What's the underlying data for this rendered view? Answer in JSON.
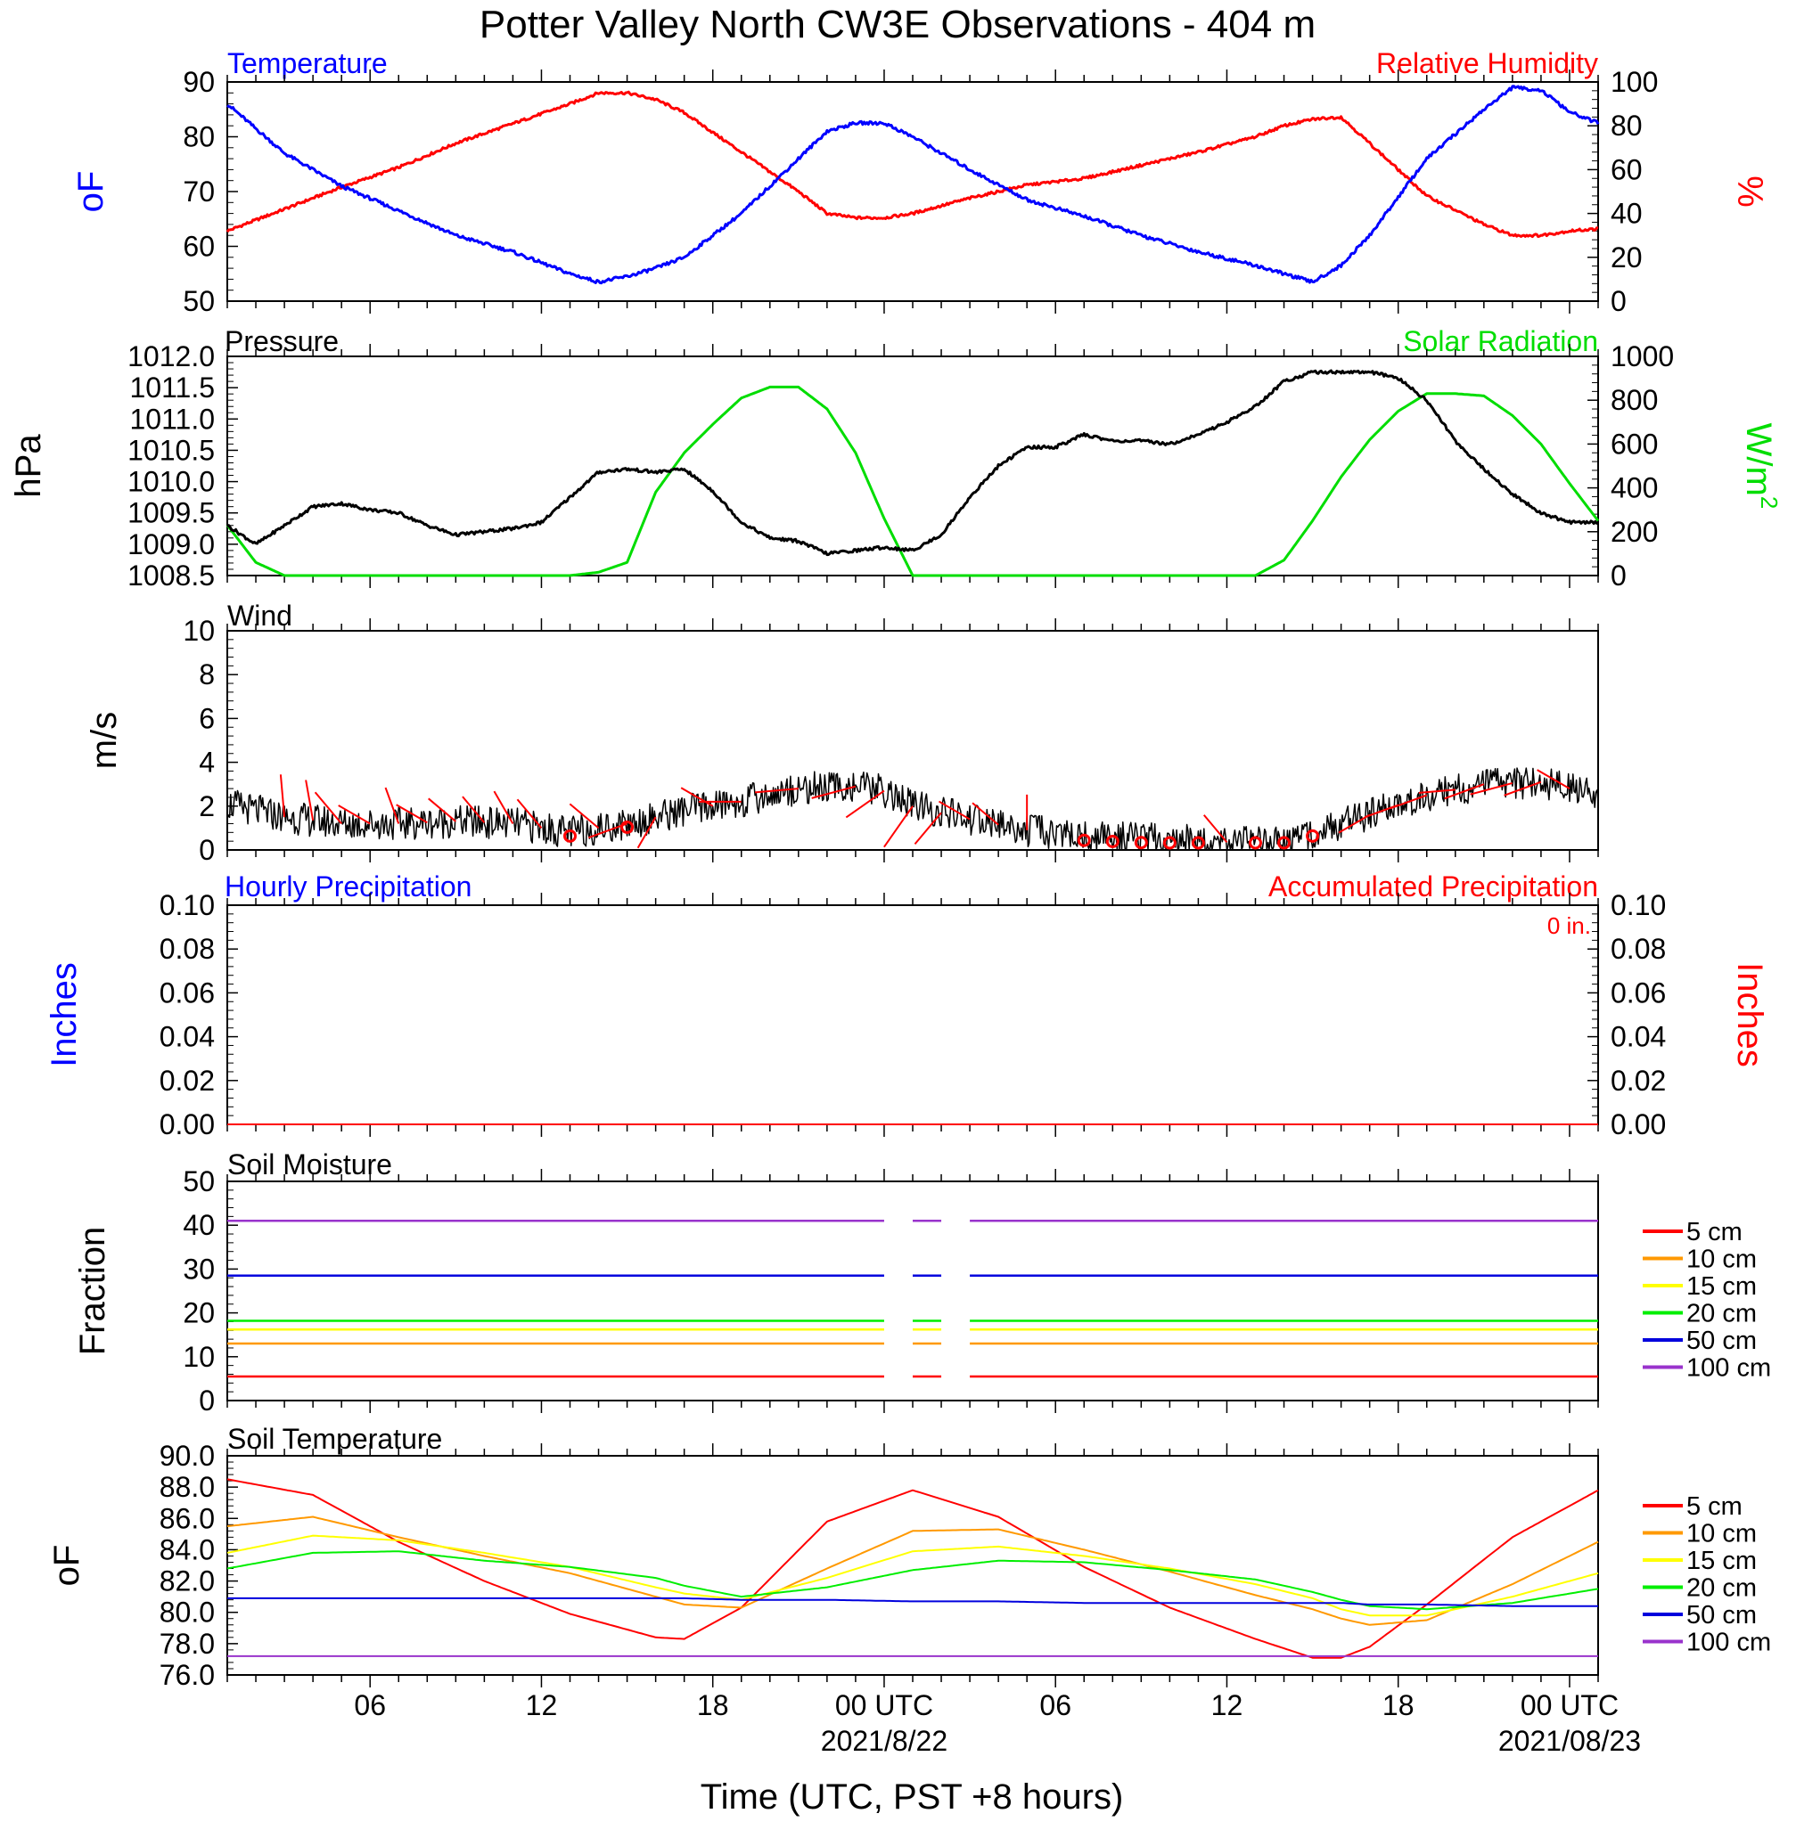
{
  "title": "Potter Valley North CW3E Observations - 404 m",
  "xaxis": {
    "title": "Time (UTC, PST +8 hours)",
    "hours_range": [
      0,
      48
    ],
    "tick_labels": [
      {
        "hour": 5,
        "label": "06",
        "sub": ""
      },
      {
        "hour": 11,
        "label": "12",
        "sub": ""
      },
      {
        "hour": 17,
        "label": "18",
        "sub": ""
      },
      {
        "hour": 23,
        "label": "00 UTC",
        "sub": "2021/8/22"
      },
      {
        "hour": 29,
        "label": "06",
        "sub": ""
      },
      {
        "hour": 35,
        "label": "12",
        "sub": ""
      },
      {
        "hour": 41,
        "label": "18",
        "sub": ""
      },
      {
        "hour": 47,
        "label": "00 UTC",
        "sub": "2021/08/23"
      }
    ]
  },
  "colors": {
    "temperature": "#0000ff",
    "humidity": "#ff0000",
    "pressure": "#000000",
    "solar": "#00dd00",
    "wind_speed": "#000000",
    "wind_barb": "#ff0000",
    "precip_hourly": "#0000ff",
    "precip_accum": "#ff0000"
  },
  "legend": {
    "depths": [
      "5 cm",
      "10 cm",
      "15 cm",
      "20 cm",
      "50 cm",
      "100 cm"
    ],
    "colors": [
      "#ff0000",
      "#ff9900",
      "#ffff00",
      "#00ee00",
      "#0000dd",
      "#9933cc"
    ]
  },
  "panels": {
    "temp_rh": {
      "left_label": "Temperature",
      "right_label": "Relative Humidity",
      "left_unit": "oF",
      "right_unit": "%",
      "left_ticks": [
        "90",
        "80",
        "70",
        "60",
        "50"
      ],
      "right_ticks": [
        "100",
        "80",
        "60",
        "40",
        "20",
        "0"
      ]
    },
    "pressure_solar": {
      "left_label": "Pressure",
      "right_label": "Solar Radiation",
      "left_unit": "hPa",
      "right_unit": "W/m2",
      "left_ticks": [
        "1012.0",
        "1011.5",
        "1011.0",
        "1010.5",
        "1010.0",
        "1009.5",
        "1009.0",
        "1008.5"
      ],
      "right_ticks": [
        "1000",
        "800",
        "600",
        "400",
        "200",
        "0"
      ]
    },
    "wind": {
      "left_label": "Wind",
      "left_unit": "m/s",
      "left_ticks": [
        "10",
        "8",
        "6",
        "4",
        "2",
        "0"
      ]
    },
    "precip": {
      "left_label": "Hourly Precipitation",
      "right_label": "Accumulated Precipitation",
      "accum_text": "0 in.",
      "left_unit": "Inches",
      "right_unit": "Inches",
      "left_ticks": [
        "0.10",
        "0.08",
        "0.06",
        "0.04",
        "0.02",
        "0.00"
      ],
      "right_ticks": [
        "0.10",
        "0.08",
        "0.06",
        "0.04",
        "0.02",
        "0.00"
      ]
    },
    "soil_moisture": {
      "left_label": "Soil Moisture",
      "left_unit": "Fraction",
      "left_ticks": [
        "50",
        "40",
        "30",
        "20",
        "10",
        "0"
      ]
    },
    "soil_temp": {
      "left_label": "Soil Temperature",
      "left_unit": "oF",
      "left_ticks": [
        "90.0",
        "88.0",
        "86.0",
        "84.0",
        "82.0",
        "80.0",
        "78.0",
        "76.0"
      ]
    }
  },
  "chart_data": [
    {
      "type": "line",
      "title": "Temperature / Relative Humidity",
      "ylim_left": [
        50,
        90
      ],
      "ylim_right": [
        0,
        100
      ],
      "x_hours": [
        0,
        2,
        4,
        6,
        8,
        10,
        12,
        13,
        14,
        15,
        16,
        18,
        20,
        21,
        22,
        23,
        24,
        26,
        28,
        30,
        32,
        34,
        36,
        37,
        38,
        39,
        40,
        42,
        44,
        45,
        46,
        47,
        48
      ],
      "series": [
        {
          "name": "Temperature",
          "axis": "left",
          "values": [
            86,
            77,
            71,
            66.5,
            62,
            59,
            55,
            53.5,
            54.5,
            56,
            58,
            66,
            76,
            81,
            82.5,
            82.5,
            80,
            74,
            68.5,
            65.5,
            62,
            59,
            56.5,
            55,
            53.5,
            56.5,
            62,
            76,
            85,
            89,
            88.5,
            84.5,
            82.5
          ]
        },
        {
          "name": "Relative Humidity",
          "axis": "right",
          "values": [
            32,
            42,
            52,
            61,
            72,
            81,
            90,
            95,
            95,
            92,
            86,
            68,
            50,
            40,
            38,
            38,
            40,
            47,
            53,
            56,
            62,
            68,
            75,
            80,
            83,
            84,
            72,
            48,
            35,
            30,
            30,
            32,
            33
          ]
        }
      ]
    },
    {
      "type": "line",
      "title": "Pressure / Solar Radiation",
      "ylim_left": [
        1008.5,
        1012.0
      ],
      "ylim_right": [
        0,
        1000
      ],
      "x_hours": [
        0,
        1,
        2,
        3,
        4,
        5,
        6,
        7,
        8,
        9,
        10,
        11,
        12,
        13,
        14,
        15,
        16,
        17,
        18,
        19,
        20,
        21,
        22,
        23,
        24,
        25,
        26,
        27,
        28,
        29,
        30,
        31,
        32,
        33,
        34,
        35,
        36,
        37,
        38,
        39,
        40,
        41,
        42,
        43,
        44,
        45,
        46,
        47,
        48
      ],
      "series": [
        {
          "name": "Pressure",
          "axis": "left",
          "values": [
            1009.3,
            1009.0,
            1009.3,
            1009.6,
            1009.65,
            1009.55,
            1009.5,
            1009.3,
            1009.15,
            1009.2,
            1009.25,
            1009.35,
            1009.75,
            1010.15,
            1010.2,
            1010.15,
            1010.2,
            1009.85,
            1009.35,
            1009.1,
            1009.05,
            1008.85,
            1008.9,
            1008.95,
            1008.9,
            1009.15,
            1009.75,
            1010.25,
            1010.55,
            1010.55,
            1010.75,
            1010.65,
            1010.65,
            1010.6,
            1010.75,
            1010.95,
            1011.2,
            1011.6,
            1011.75,
            1011.75,
            1011.75,
            1011.65,
            1011.3,
            1010.65,
            1010.2,
            1009.8,
            1009.5,
            1009.35,
            1009.35
          ]
        },
        {
          "name": "Solar Radiation",
          "axis": "right",
          "values": [
            230,
            60,
            0,
            0,
            0,
            0,
            0,
            0,
            0,
            0,
            0,
            0,
            0,
            15,
            60,
            380,
            560,
            690,
            810,
            860,
            860,
            760,
            560,
            260,
            0,
            0,
            0,
            0,
            0,
            0,
            0,
            0,
            0,
            0,
            0,
            0,
            0,
            70,
            250,
            450,
            620,
            750,
            830,
            830,
            820,
            730,
            600,
            420,
            250
          ]
        }
      ]
    },
    {
      "type": "line",
      "title": "Wind",
      "ylim": [
        0,
        10
      ],
      "x_hours": [
        0,
        2,
        4,
        6,
        8,
        10,
        12,
        13,
        14,
        16,
        18,
        20,
        22,
        23,
        24,
        26,
        28,
        30,
        32,
        34,
        36,
        37,
        38,
        40,
        42,
        44,
        46,
        48
      ],
      "series": [
        {
          "name": "Wind speed",
          "values": [
            2.1,
            1.5,
            1.2,
            1.2,
            1.3,
            1.2,
            0.8,
            1.0,
            1.2,
            1.8,
            2.2,
            2.8,
            2.9,
            2.7,
            2.0,
            1.4,
            0.9,
            0.6,
            0.5,
            0.4,
            0.3,
            0.3,
            0.8,
            1.6,
            2.5,
            3.0,
            3.1,
            2.5
          ]
        }
      ],
      "barbs": [
        {
          "hour": 2,
          "speed": 2.2,
          "dir_deg": 355
        },
        {
          "hour": 3,
          "speed": 2.0,
          "dir_deg": 350
        },
        {
          "hour": 4,
          "speed": 2.0,
          "dir_deg": 320
        },
        {
          "hour": 5,
          "speed": 1.5,
          "dir_deg": 300
        },
        {
          "hour": 6,
          "speed": 1.7,
          "dir_deg": 340
        },
        {
          "hour": 7,
          "speed": 1.4,
          "dir_deg": 300
        },
        {
          "hour": 8,
          "speed": 1.4,
          "dir_deg": 310
        },
        {
          "hour": 9,
          "speed": 1.2,
          "dir_deg": 320
        },
        {
          "hour": 10,
          "speed": 1.6,
          "dir_deg": 330
        },
        {
          "hour": 11,
          "speed": 1.6,
          "dir_deg": 320
        },
        {
          "hour": 13,
          "speed": 1.6,
          "dir_deg": 310
        },
        {
          "hour": 14,
          "speed": 2.0,
          "dir_deg": 250
        },
        {
          "hour": 15,
          "speed": 1.4,
          "dir_deg": 210
        },
        {
          "hour": 17,
          "speed": 1.5,
          "dir_deg": 300
        },
        {
          "hour": 18,
          "speed": 2.2,
          "dir_deg": 270
        },
        {
          "hour": 20,
          "speed": 2.3,
          "dir_deg": 265
        },
        {
          "hour": 22,
          "speed": 2.5,
          "dir_deg": 255
        },
        {
          "hour": 23,
          "speed": 2.6,
          "dir_deg": 235
        },
        {
          "hour": 24,
          "speed": 3.0,
          "dir_deg": 215
        },
        {
          "hour": 25,
          "speed": 2.0,
          "dir_deg": 220
        },
        {
          "hour": 26,
          "speed": 1.4,
          "dir_deg": 300
        },
        {
          "hour": 27,
          "speed": 1.2,
          "dir_deg": 310
        },
        {
          "hour": 28,
          "speed": 1.4,
          "dir_deg": 0
        },
        {
          "hour": 35,
          "speed": 1.4,
          "dir_deg": 320
        },
        {
          "hour": 40,
          "speed": 1.4,
          "dir_deg": 240
        },
        {
          "hour": 41,
          "speed": 1.4,
          "dir_deg": 250
        },
        {
          "hour": 42,
          "speed": 1.7,
          "dir_deg": 250
        },
        {
          "hour": 43,
          "speed": 1.5,
          "dir_deg": 265
        },
        {
          "hour": 44,
          "speed": 2.1,
          "dir_deg": 250
        },
        {
          "hour": 45,
          "speed": 2.3,
          "dir_deg": 255
        },
        {
          "hour": 46,
          "speed": 1.8,
          "dir_deg": 250
        },
        {
          "hour": 47,
          "speed": 1.6,
          "dir_deg": 300
        }
      ],
      "calm_hours": [
        12,
        14,
        30,
        31,
        32,
        33,
        34,
        36,
        37,
        38
      ]
    },
    {
      "type": "line",
      "title": "Hourly Precipitation / Accumulated Precipitation",
      "ylim": [
        0,
        0.1
      ],
      "x_hours": [
        0,
        48
      ],
      "series": [
        {
          "name": "Hourly Precipitation",
          "values": [
            0,
            0
          ]
        },
        {
          "name": "Accumulated Precipitation",
          "values": [
            0,
            0
          ]
        }
      ]
    },
    {
      "type": "line",
      "title": "Soil Moisture",
      "ylim": [
        0,
        50
      ],
      "gaps_hours": [
        [
          23.0,
          24.0
        ],
        [
          25.0,
          26.0
        ]
      ],
      "x_hours": [
        0,
        48
      ],
      "series": [
        {
          "name": "5 cm",
          "values": [
            5.5,
            5.5
          ]
        },
        {
          "name": "10 cm",
          "values": [
            13.0,
            13.0
          ]
        },
        {
          "name": "15 cm",
          "values": [
            16.2,
            16.2
          ]
        },
        {
          "name": "20 cm",
          "values": [
            18.2,
            18.2
          ]
        },
        {
          "name": "50 cm",
          "values": [
            28.5,
            28.5
          ]
        },
        {
          "name": "100 cm",
          "values": [
            41.0,
            41.0
          ]
        }
      ]
    },
    {
      "type": "line",
      "title": "Soil Temperature",
      "ylim": [
        76,
        90
      ],
      "x_hours": [
        0,
        3,
        6,
        9,
        12,
        15,
        16,
        18,
        21,
        24,
        27,
        30,
        33,
        36,
        38,
        39,
        40,
        42,
        45,
        48
      ],
      "series": [
        {
          "name": "5 cm",
          "values": [
            88.5,
            87.5,
            84.5,
            82.0,
            79.9,
            78.4,
            78.3,
            80.3,
            85.8,
            87.8,
            86.1,
            82.9,
            80.3,
            78.3,
            77.1,
            77.1,
            77.8,
            80.5,
            84.8,
            87.8
          ]
        },
        {
          "name": "10 cm",
          "values": [
            85.5,
            86.1,
            84.8,
            83.6,
            82.5,
            81.0,
            80.5,
            80.3,
            82.8,
            85.2,
            85.3,
            84.0,
            82.6,
            81.1,
            80.2,
            79.6,
            79.2,
            79.5,
            81.8,
            84.5
          ]
        },
        {
          "name": "15 cm",
          "values": [
            83.8,
            84.9,
            84.6,
            83.8,
            82.9,
            81.6,
            81.2,
            80.8,
            82.2,
            83.9,
            84.2,
            83.6,
            82.8,
            81.8,
            80.9,
            80.2,
            79.8,
            79.8,
            81.0,
            82.5
          ]
        },
        {
          "name": "20 cm",
          "values": [
            82.8,
            83.8,
            83.9,
            83.3,
            82.9,
            82.2,
            81.7,
            81.0,
            81.6,
            82.7,
            83.3,
            83.2,
            82.7,
            82.1,
            81.3,
            80.8,
            80.4,
            80.2,
            80.6,
            81.5
          ]
        },
        {
          "name": "50 cm",
          "values": [
            80.9,
            80.9,
            80.9,
            80.9,
            80.9,
            80.9,
            80.9,
            80.8,
            80.8,
            80.7,
            80.7,
            80.6,
            80.6,
            80.6,
            80.6,
            80.6,
            80.5,
            80.5,
            80.4,
            80.4
          ]
        },
        {
          "name": "100 cm",
          "values": [
            77.2,
            77.2,
            77.2,
            77.2,
            77.2,
            77.2,
            77.2,
            77.2,
            77.2,
            77.2,
            77.2,
            77.2,
            77.2,
            77.2,
            77.2,
            77.2,
            77.2,
            77.2,
            77.2,
            77.2
          ]
        }
      ]
    }
  ]
}
